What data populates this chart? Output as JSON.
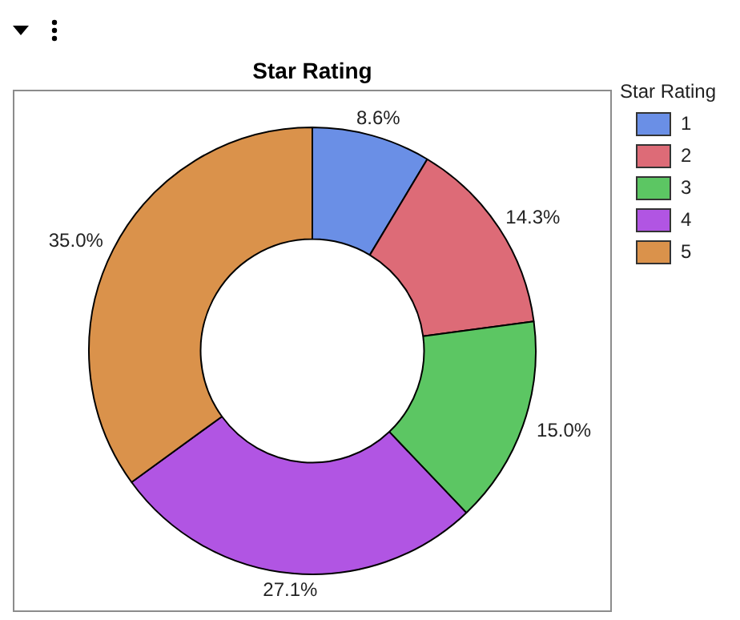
{
  "chart_data": {
    "type": "donut",
    "title": "Star Rating",
    "legend_title": "Star Rating",
    "legend": "top right",
    "categories": [
      "1",
      "2",
      "3",
      "4",
      "5"
    ],
    "values": [
      8.6,
      14.3,
      15.0,
      27.1,
      35.0
    ],
    "value_labels": [
      "8.6%",
      "14.3%",
      "15.0%",
      "27.1%",
      "35.0%"
    ],
    "colors": [
      "#6a8fe6",
      "#dd6b77",
      "#5cc663",
      "#b155e3",
      "#da924b"
    ]
  }
}
